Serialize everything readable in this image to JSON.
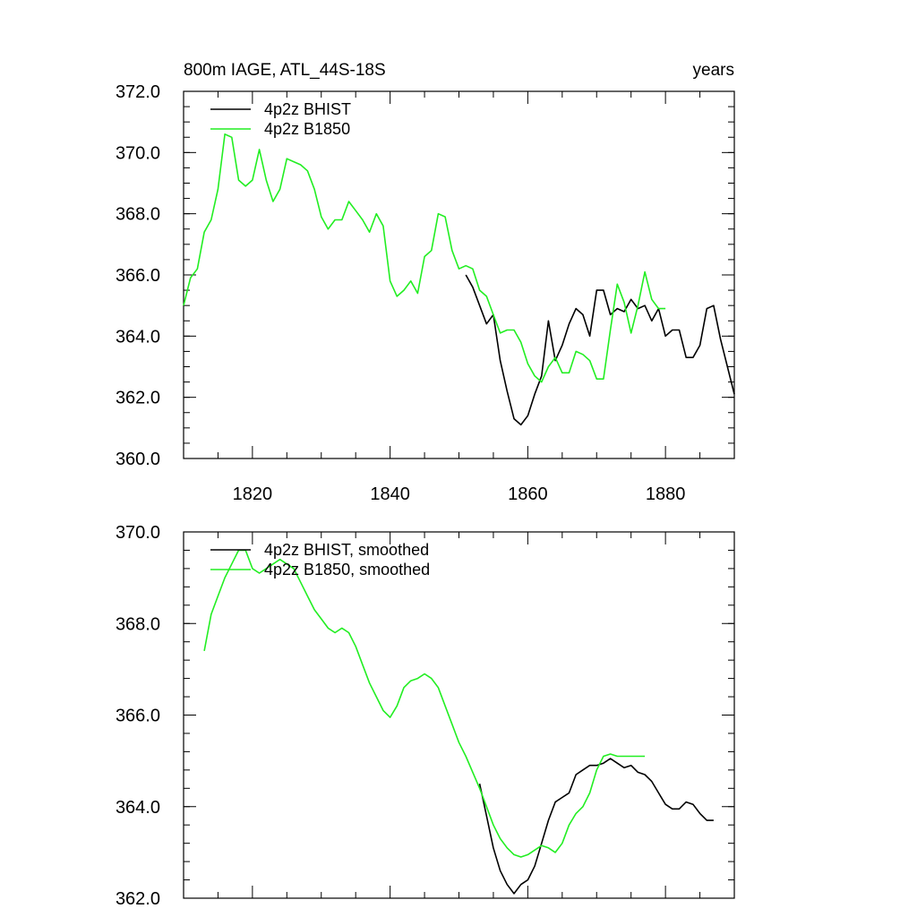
{
  "chart_data": [
    {
      "type": "line",
      "title_left": "800m IAGE, ATL_44S-18S",
      "title_right": "years",
      "xlim": [
        1810,
        1890
      ],
      "ylim": [
        360,
        372
      ],
      "yticks": [
        360,
        362,
        364,
        366,
        368,
        370,
        372
      ],
      "ytick_labels": [
        "360.0",
        "362.0",
        "364.0",
        "366.0",
        "368.0",
        "370.0",
        "372.0"
      ],
      "xticks": [
        1820,
        1840,
        1860,
        1880
      ],
      "xtick_labels": [
        "1820",
        "1840",
        "1860",
        "1880"
      ],
      "legend_position": "top-left",
      "series": [
        {
          "name": "4p2z BHIST",
          "color": "#000000",
          "x": [
            1851,
            1852,
            1853,
            1854,
            1855,
            1856,
            1857,
            1858,
            1859,
            1860,
            1861,
            1862,
            1863,
            1864,
            1865,
            1866,
            1867,
            1868,
            1869,
            1870,
            1871,
            1872,
            1873,
            1874,
            1875,
            1876,
            1877,
            1878,
            1879,
            1880,
            1881,
            1882,
            1883,
            1884,
            1885,
            1886,
            1887,
            1888,
            1889,
            1890
          ],
          "y": [
            366.0,
            365.6,
            365.0,
            364.4,
            364.7,
            363.2,
            362.2,
            361.3,
            361.1,
            361.4,
            362.1,
            362.7,
            364.5,
            363.2,
            363.7,
            364.4,
            364.9,
            364.7,
            364.0,
            365.5,
            365.5,
            364.7,
            364.9,
            364.8,
            365.2,
            364.9,
            365.0,
            364.5,
            364.9,
            364.0,
            364.2,
            364.2,
            363.3,
            363.3,
            363.7,
            364.9,
            365.0,
            363.9,
            363.0,
            362.1
          ]
        },
        {
          "name": "4p2z B1850",
          "color": "#22ee22",
          "x": [
            1810,
            1811,
            1812,
            1813,
            1814,
            1815,
            1816,
            1817,
            1818,
            1819,
            1820,
            1821,
            1822,
            1823,
            1824,
            1825,
            1826,
            1827,
            1828,
            1829,
            1830,
            1831,
            1832,
            1833,
            1834,
            1835,
            1836,
            1837,
            1838,
            1839,
            1840,
            1841,
            1842,
            1843,
            1844,
            1845,
            1846,
            1847,
            1848,
            1849,
            1850,
            1851,
            1852,
            1853,
            1854,
            1855,
            1856,
            1857,
            1858,
            1859,
            1860,
            1861,
            1862,
            1863,
            1864,
            1865,
            1866,
            1867,
            1868,
            1869,
            1870,
            1871,
            1872,
            1873,
            1874,
            1875,
            1876,
            1877,
            1878,
            1879,
            1880
          ],
          "y": [
            365.0,
            365.9,
            366.2,
            367.4,
            367.8,
            368.8,
            370.6,
            370.5,
            369.1,
            368.9,
            369.1,
            370.1,
            369.1,
            368.4,
            368.8,
            369.8,
            369.7,
            369.6,
            369.4,
            368.8,
            367.9,
            367.5,
            367.8,
            367.8,
            368.4,
            368.1,
            367.8,
            367.4,
            368.0,
            367.6,
            365.8,
            365.3,
            365.5,
            365.8,
            365.4,
            366.6,
            366.8,
            368.0,
            367.9,
            366.8,
            366.2,
            366.3,
            366.2,
            365.5,
            365.3,
            364.7,
            364.1,
            364.2,
            364.2,
            363.8,
            363.1,
            362.7,
            362.5,
            363.0,
            363.3,
            362.8,
            362.8,
            363.5,
            363.4,
            363.2,
            362.6,
            362.6,
            364.2,
            365.7,
            365.1,
            364.1,
            365.0,
            366.1,
            365.2,
            364.9,
            364.9
          ]
        }
      ]
    },
    {
      "type": "line",
      "xlim": [
        1810,
        1890
      ],
      "ylim": [
        362,
        370
      ],
      "yticks": [
        362,
        364,
        366,
        368,
        370
      ],
      "ytick_labels": [
        "362.0",
        "364.0",
        "366.0",
        "368.0",
        "370.0"
      ],
      "xticks": [
        1820,
        1840,
        1860,
        1880
      ],
      "legend_position": "top-left",
      "series": [
        {
          "name": "4p2z BHIST, smoothed",
          "color": "#000000",
          "x": [
            1853,
            1854,
            1855,
            1856,
            1857,
            1858,
            1859,
            1860,
            1861,
            1862,
            1863,
            1864,
            1865,
            1866,
            1867,
            1868,
            1869,
            1870,
            1871,
            1872,
            1873,
            1874,
            1875,
            1876,
            1877,
            1878,
            1879,
            1880,
            1881,
            1882,
            1883,
            1884,
            1885,
            1886,
            1887
          ],
          "y": [
            364.5,
            363.8,
            363.1,
            362.6,
            362.3,
            362.1,
            362.3,
            362.4,
            362.7,
            363.2,
            363.7,
            364.1,
            364.2,
            364.3,
            364.7,
            364.8,
            364.9,
            364.9,
            364.95,
            365.05,
            364.95,
            364.85,
            364.9,
            364.75,
            364.7,
            364.55,
            364.3,
            364.05,
            363.95,
            363.95,
            364.1,
            364.05,
            363.85,
            363.7,
            363.7
          ]
        },
        {
          "name": "4p2z B1850, smoothed",
          "color": "#22ee22",
          "x": [
            1813,
            1814,
            1815,
            1816,
            1817,
            1818,
            1819,
            1820,
            1821,
            1822,
            1823,
            1824,
            1825,
            1826,
            1827,
            1828,
            1829,
            1830,
            1831,
            1832,
            1833,
            1834,
            1835,
            1836,
            1837,
            1838,
            1839,
            1840,
            1841,
            1842,
            1843,
            1844,
            1845,
            1846,
            1847,
            1848,
            1849,
            1850,
            1851,
            1852,
            1853,
            1854,
            1855,
            1856,
            1857,
            1858,
            1859,
            1860,
            1861,
            1862,
            1863,
            1864,
            1865,
            1866,
            1867,
            1868,
            1869,
            1870,
            1871,
            1872,
            1873,
            1874,
            1875,
            1876,
            1877
          ],
          "y": [
            367.4,
            368.2,
            368.6,
            369.0,
            369.3,
            369.6,
            369.6,
            369.2,
            369.1,
            369.2,
            369.3,
            369.4,
            369.3,
            369.2,
            368.9,
            368.6,
            368.3,
            368.1,
            367.9,
            367.8,
            367.9,
            367.8,
            367.5,
            367.1,
            366.7,
            366.4,
            366.1,
            365.95,
            366.2,
            366.6,
            366.75,
            366.8,
            366.9,
            366.8,
            366.6,
            366.2,
            365.8,
            365.4,
            365.1,
            364.75,
            364.4,
            364.0,
            363.6,
            363.3,
            363.1,
            362.95,
            362.9,
            362.95,
            363.05,
            363.15,
            363.1,
            363.0,
            363.2,
            363.6,
            363.85,
            364.0,
            364.3,
            364.8,
            365.1,
            365.15,
            365.1,
            365.1,
            365.1,
            365.1,
            365.1
          ]
        }
      ]
    }
  ]
}
